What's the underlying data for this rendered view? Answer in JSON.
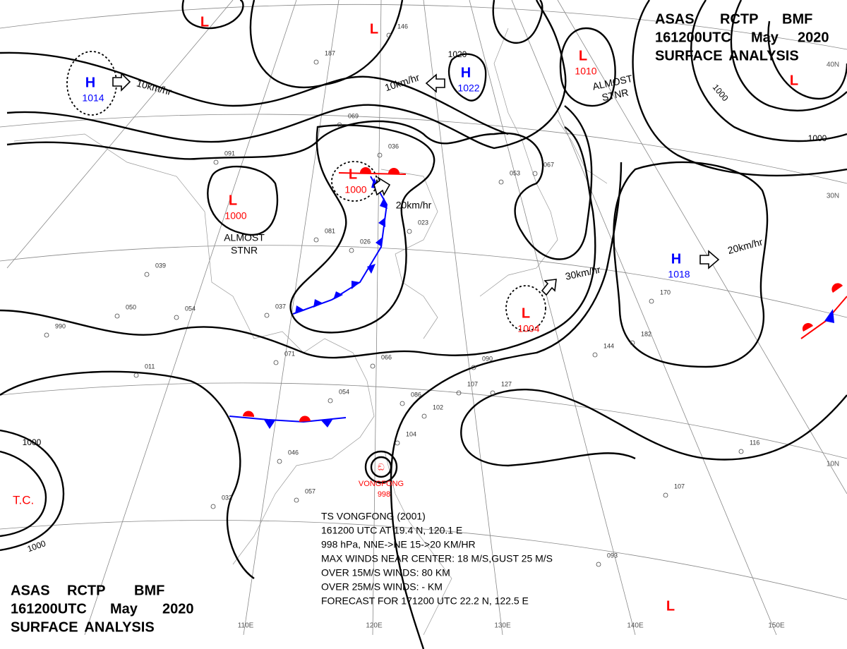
{
  "header": {
    "agency": "ASAS",
    "station": "RCTP",
    "code": "BMF",
    "time": "161200UTC",
    "month": "May",
    "year": "2020",
    "title": "SURFACE ANALYSIS"
  },
  "centers": [
    {
      "symbol": "L"
    },
    {
      "symbol": "L"
    },
    {
      "symbol": "L",
      "pressure": "1010"
    },
    {
      "symbol": "H",
      "pressure": "1014"
    },
    {
      "symbol": "H",
      "pressure": "1022"
    },
    {
      "symbol": "L",
      "pressure": "1000"
    },
    {
      "symbol": "L",
      "pressure": "1000"
    },
    {
      "symbol": "L",
      "pressure": "1004"
    },
    {
      "symbol": "H",
      "pressure": "1018"
    },
    {
      "symbol": "L"
    },
    {
      "symbol": "L"
    }
  ],
  "isobar_labels": [
    "1020",
    "1000",
    "1000",
    "1000",
    "1000"
  ],
  "motions": [
    "10km/hr",
    "10km/hr",
    "20km/hr",
    "30km/hr",
    "20km/hr"
  ],
  "stationary": [
    {
      "line1": "ALMOST",
      "line2": "STNR"
    },
    {
      "line1": "ALMOST",
      "line2": "STNR"
    }
  ],
  "tropical": {
    "tc_label": "T.C.",
    "name": "VONGFONG",
    "pressure": "998"
  },
  "bulletin": [
    "TS VONGFONG (2001)",
    "161200 UTC AT 19.4 N, 120.1 E",
    "998 hPa, NNE->NE 15->20 KM/HR",
    "MAX WINDS NEAR CENTER: 18 M/S,GUST 25 M/S",
    "OVER 15M/S WINDS: 80 KM",
    "OVER 25M/S WINDS: - KM",
    "FORECAST FOR 171200 UTC 22.2 N, 122.5 E"
  ],
  "grid_labels": [
    "40N",
    "30N",
    "10N",
    "110E",
    "120E",
    "130E",
    "140E",
    "150E"
  ],
  "stations": [
    "146",
    "187",
    "069",
    "036",
    "091",
    "053",
    "067",
    "081",
    "026",
    "023",
    "054",
    "050",
    "037",
    "071",
    "066",
    "054",
    "086",
    "102",
    "104",
    "090",
    "127",
    "107",
    "144",
    "182",
    "170",
    "116",
    "046",
    "057",
    "032",
    "011",
    "990",
    "039",
    "093",
    "107"
  ]
}
